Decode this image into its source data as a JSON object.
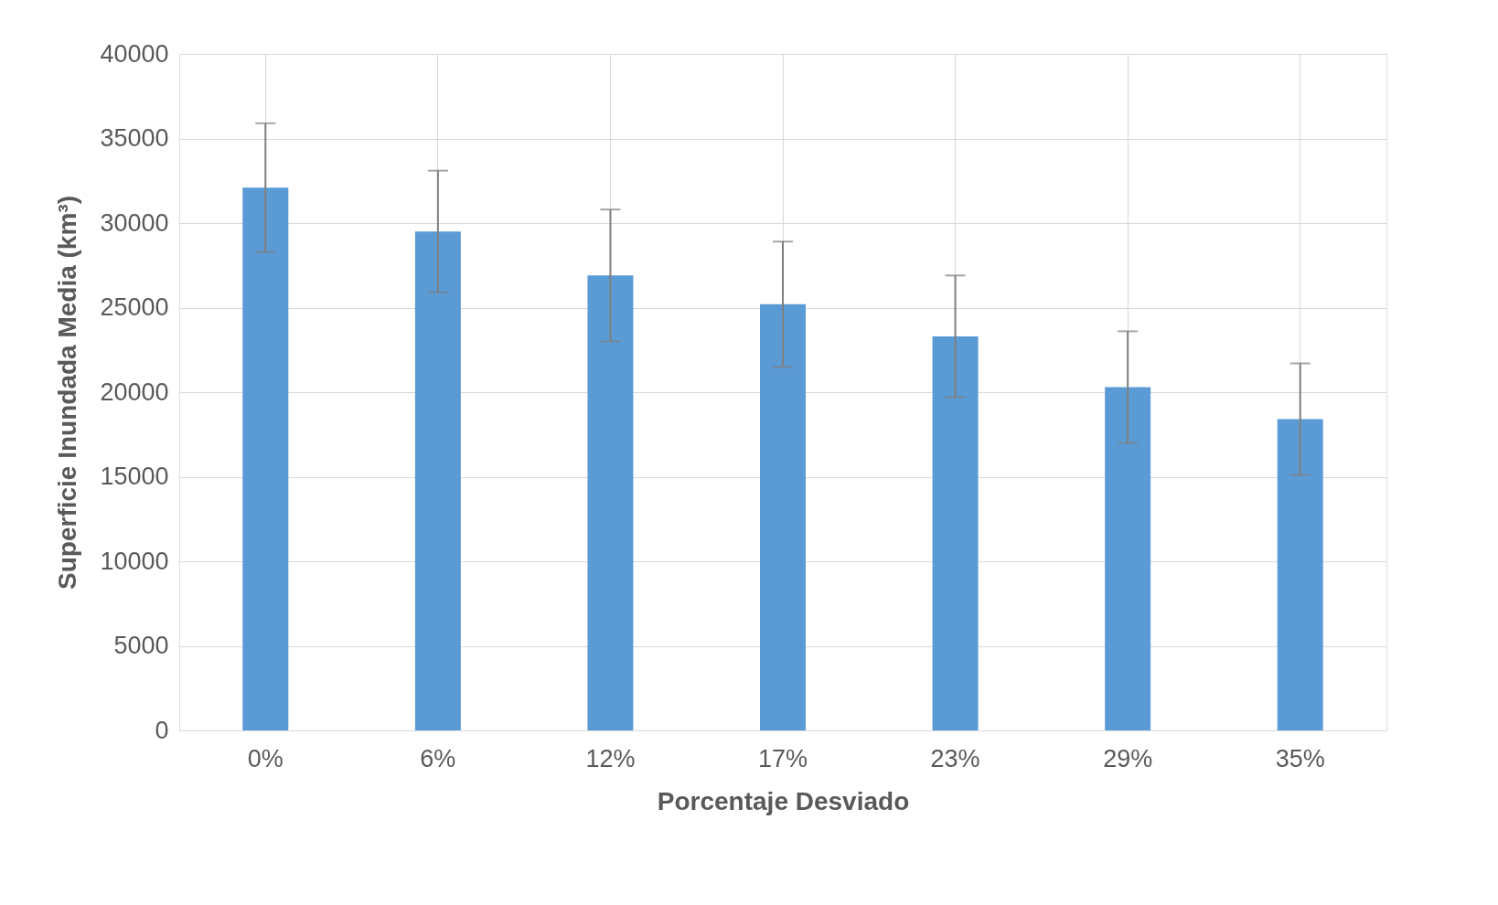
{
  "chart_data": {
    "type": "bar",
    "xlabel": "Porcentaje Desviado",
    "ylabel": "Superficie Inundada Media (km³)",
    "categories": [
      "0%",
      "6%",
      "12%",
      "17%",
      "23%",
      "29%",
      "35%"
    ],
    "values": [
      32100,
      29500,
      26900,
      25200,
      23300,
      20300,
      18400
    ],
    "errors": [
      3800,
      3600,
      3900,
      3700,
      3600,
      3300,
      3300
    ],
    "color": "#5b9bd5",
    "ylim": [
      0,
      40000
    ],
    "yticks": [
      0,
      5000,
      10000,
      15000,
      20000,
      25000,
      30000,
      35000,
      40000
    ],
    "grid": true
  }
}
